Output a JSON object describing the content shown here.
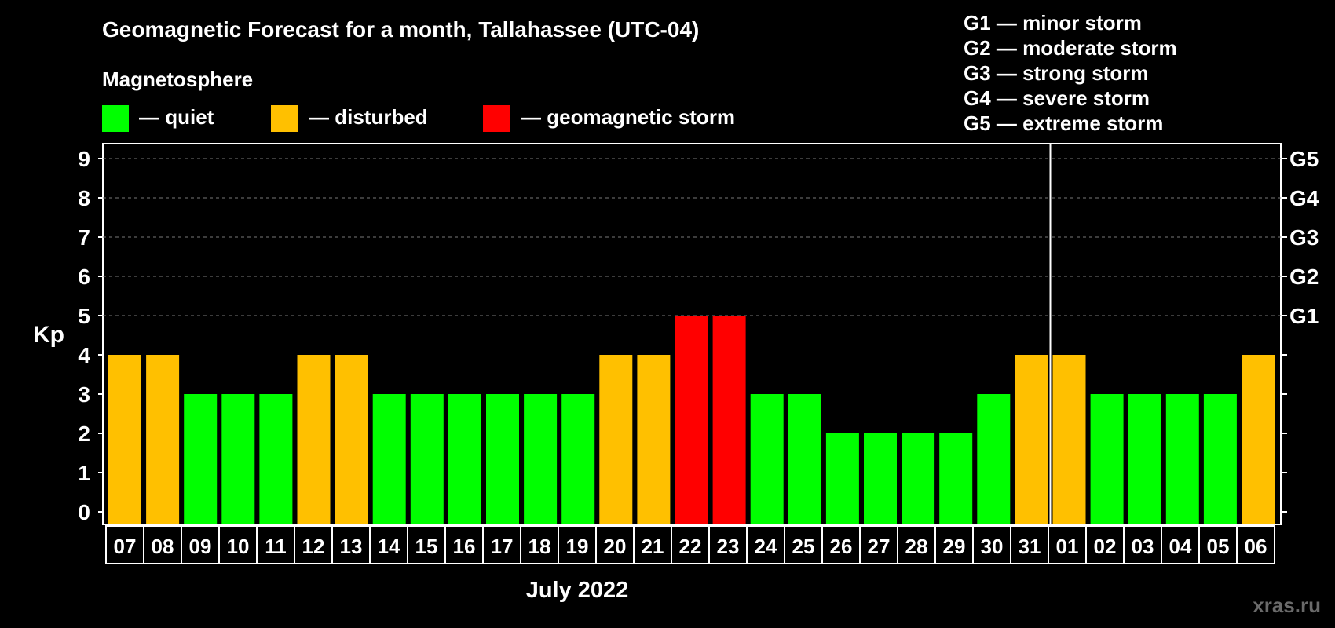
{
  "title": "Geomagnetic Forecast for a month, Tallahassee (UTC-04)",
  "magnetosphere_label": "Magnetosphere",
  "legend": [
    {
      "label": "— quiet",
      "color": "#00ff00"
    },
    {
      "label": "— disturbed",
      "color": "#ffc000"
    },
    {
      "label": "— geomagnetic storm",
      "color": "#ff0000"
    }
  ],
  "g_scale": [
    "G1 — minor storm",
    "G2 — moderate storm",
    "G3 — strong storm",
    "G4 — severe storm",
    "G5 — extreme storm"
  ],
  "watermark": "xras.ru",
  "chart_data": {
    "type": "bar",
    "title": "Geomagnetic Forecast for a month, Tallahassee (UTC-04)",
    "xlabel": "July 2022",
    "ylabel": "Kp",
    "ylim": [
      0,
      9
    ],
    "yticks": [
      "0",
      "1",
      "2",
      "3",
      "4",
      "5",
      "6",
      "7",
      "8",
      "9"
    ],
    "right_ticks": [
      {
        "value": 5,
        "label": "G1"
      },
      {
        "value": 6,
        "label": "G2"
      },
      {
        "value": 7,
        "label": "G3"
      },
      {
        "value": 8,
        "label": "G4"
      },
      {
        "value": 9,
        "label": "G5"
      }
    ],
    "grid": "dashed horizontal at 5-9",
    "month_divider_after": "31",
    "categories": [
      "07",
      "08",
      "09",
      "10",
      "11",
      "12",
      "13",
      "14",
      "15",
      "16",
      "17",
      "18",
      "19",
      "20",
      "21",
      "22",
      "23",
      "24",
      "25",
      "26",
      "27",
      "28",
      "29",
      "30",
      "31",
      "01",
      "02",
      "03",
      "04",
      "05",
      "06"
    ],
    "values": [
      4,
      4,
      3,
      3,
      3,
      4,
      4,
      3,
      3,
      3,
      3,
      3,
      3,
      4,
      4,
      5,
      5,
      3,
      3,
      2,
      2,
      2,
      2,
      3,
      4,
      4,
      3,
      3,
      3,
      3,
      4
    ],
    "color_rule": {
      "quiet": "#00ff00",
      "disturbed": "#ffc000",
      "storm": "#ff0000"
    }
  }
}
